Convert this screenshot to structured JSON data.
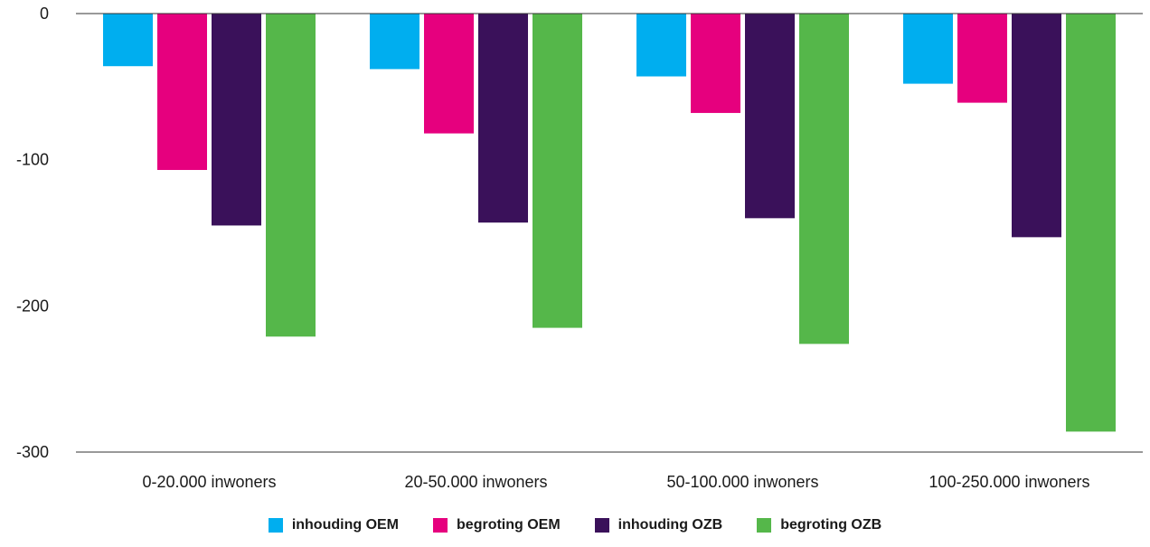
{
  "chart_data": {
    "type": "bar",
    "categories": [
      "0-20.000 inwoners",
      "20-50.000 inwoners",
      "50-100.000 inwoners",
      "100-250.000 inwoners"
    ],
    "series": [
      {
        "name": "inhouding OEM",
        "color": "#00aeef",
        "values": [
          -36,
          -38,
          -43,
          -48
        ]
      },
      {
        "name": "begroting OEM",
        "color": "#e6007e",
        "values": [
          -107,
          -82,
          -68,
          -61
        ]
      },
      {
        "name": "inhouding OZB",
        "color": "#3a115a",
        "values": [
          -145,
          -143,
          -140,
          -153
        ]
      },
      {
        "name": "begroting OZB",
        "color": "#55b74a",
        "values": [
          -221,
          -215,
          -226,
          -286
        ]
      }
    ],
    "yticks": [
      0,
      -100,
      -200,
      -300
    ],
    "ylim": [
      -300,
      0
    ],
    "grid": false,
    "legend_position": "bottom"
  }
}
